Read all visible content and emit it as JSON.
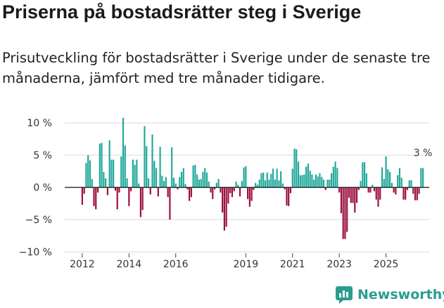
{
  "header": {
    "title": "Priserna på bostadsrätter steg i Sverige",
    "subtitle": "Prisutveckling för bostadsrätter i Sverige under de senaste tre månaderna, jämfört med tre månader tidigare."
  },
  "brand": {
    "name": "Newsworthy"
  },
  "colors": {
    "positive": "#1fa89a",
    "negative": "#9b0f3d",
    "zero_line": "#111111",
    "text": "#333333",
    "brand": "#2a9d8f"
  },
  "chart_data": {
    "type": "bar",
    "title": "",
    "xlabel": "",
    "ylabel": "",
    "ylim": [
      -10,
      11
    ],
    "yticks": [
      {
        "value": 10,
        "label": "10 %"
      },
      {
        "value": 5,
        "label": "5 %"
      },
      {
        "value": 0,
        "label": "0 %"
      },
      {
        "value": -5,
        "label": "−5 %"
      },
      {
        "value": -10,
        "label": "−10 %"
      }
    ],
    "xlim": [
      2011.25,
      2026.85
    ],
    "xticks": [
      {
        "value": 2012,
        "label": "2012"
      },
      {
        "value": 2014,
        "label": "2014"
      },
      {
        "value": 2016,
        "label": "2016"
      },
      {
        "value": 2019,
        "label": "2019"
      },
      {
        "value": 2021,
        "label": "2021"
      },
      {
        "value": 2023,
        "label": "2023"
      },
      {
        "value": 2025,
        "label": "2025"
      }
    ],
    "start": 2012.0,
    "step": 0.08333,
    "values": [
      -2.7,
      -1.0,
      3.8,
      5.0,
      4.2,
      1.3,
      -2.9,
      -3.4,
      -0.8,
      6.8,
      6.9,
      2.4,
      1.4,
      -1.2,
      7.3,
      4.3,
      4.3,
      -0.5,
      -3.4,
      -0.8,
      4.8,
      10.8,
      6.5,
      1.4,
      -2.9,
      -0.6,
      4.3,
      3.5,
      4.3,
      0.6,
      -4.6,
      -3.5,
      9.5,
      6.4,
      1.4,
      -1.1,
      8.2,
      4.1,
      3.0,
      -1.4,
      6.3,
      1.8,
      1.0,
      1.6,
      -1.5,
      -5.0,
      6.2,
      1.5,
      0.6,
      -0.3,
      1.6,
      2.4,
      3.0,
      0.5,
      -0.3,
      -2.1,
      -1.5,
      3.4,
      3.5,
      2.0,
      1.2,
      1.3,
      2.4,
      3.0,
      2.3,
      0.9,
      -0.8,
      -1.8,
      -0.3,
      0.7,
      1.3,
      -0.8,
      -3.9,
      -6.7,
      -6.1,
      -2.5,
      -0.9,
      -1.5,
      -0.6,
      0.9,
      0.4,
      -1.4,
      1.0,
      3.1,
      3.3,
      -1.8,
      -3.0,
      -2.1,
      -0.4,
      0.7,
      0.4,
      1.2,
      2.2,
      2.3,
      1.1,
      2.3,
      1.2,
      2.1,
      2.9,
      1.2,
      2.9,
      1.1,
      2.5,
      0.6,
      -0.3,
      -2.8,
      -2.9,
      -0.9,
      2.9,
      6.0,
      5.9,
      4.0,
      1.9,
      1.9,
      2.0,
      3.2,
      3.7,
      2.6,
      2.0,
      1.2,
      2.0,
      1.7,
      2.2,
      1.6,
      1.2,
      -0.4,
      1.2,
      1.2,
      2.2,
      3.2,
      4.0,
      3.0,
      -0.8,
      -4.0,
      -8.0,
      -8.0,
      -6.9,
      -1.6,
      -2.4,
      -2.4,
      -3.9,
      -2.4,
      -0.4,
      1.0,
      3.9,
      3.9,
      2.2,
      -0.8,
      -0.8,
      0.4,
      -0.6,
      -1.9,
      -3.0,
      -1.9,
      3.1,
      1.3,
      4.8,
      2.8,
      2.4,
      0.7,
      -0.8,
      -1.1,
      1.9,
      3.0,
      1.5,
      -1.9,
      -1.9,
      -0.4,
      1.1,
      1.1,
      -1.0,
      -2.0,
      -2.0,
      -1.0,
      3.0,
      3.0
    ],
    "annotation": {
      "text": "3 %"
    }
  }
}
